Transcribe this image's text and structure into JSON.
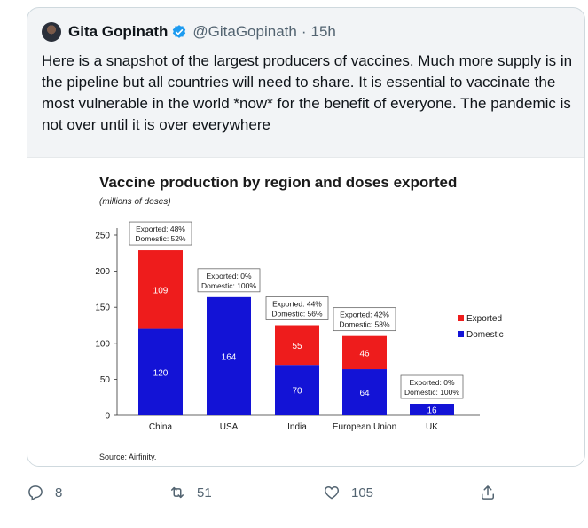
{
  "tweet": {
    "author_name": "Gita Gopinath",
    "author_handle": "@GitaGopinath",
    "separator": "·",
    "time": "15h",
    "text": "Here is a snapshot of the largest producers of vaccines. Much more supply is in the pipeline but all countries will need to share. It is essential to vaccinate the most vulnerable in the world *now* for the benefit of everyone. The pandemic is not over until it is over everywhere"
  },
  "actions": {
    "reply_count": "8",
    "retweet_count": "51",
    "like_count": "105"
  },
  "icons": {
    "verified": "verified-badge-icon",
    "reply": "reply-icon",
    "retweet": "retweet-icon",
    "like": "heart-icon",
    "share": "share-icon"
  },
  "colors": {
    "exported": "#ee1c1c",
    "domestic": "#1313d6",
    "link_blue": "#1d9bf0"
  },
  "chart_data": {
    "type": "bar",
    "title": "Vaccine production by region and doses exported",
    "subtitle": "(millions of doses)",
    "source": "Source: Airfinity.",
    "categories": [
      "China",
      "USA",
      "India",
      "European Union",
      "UK"
    ],
    "series": [
      {
        "name": "Domestic",
        "values": [
          120,
          164,
          70,
          64,
          16
        ]
      },
      {
        "name": "Exported",
        "values": [
          109,
          0,
          55,
          46,
          0
        ]
      }
    ],
    "stacked": true,
    "annotations": [
      {
        "exported": "Exported: 48%",
        "domestic": "Domestic: 52%"
      },
      {
        "exported": "Exported: 0%",
        "domestic": "Domestic: 100%"
      },
      {
        "exported": "Exported: 44%",
        "domestic": "Domestic: 56%"
      },
      {
        "exported": "Exported: 42%",
        "domestic": "Domestic: 58%"
      },
      {
        "exported": "Exported: 0%",
        "domestic": "Domestic: 100%"
      }
    ],
    "yticks": [
      "0",
      "50",
      "100",
      "150",
      "200",
      "250"
    ],
    "ylim": [
      0,
      250
    ],
    "legend": [
      "Exported",
      "Domestic"
    ],
    "legend_position": "right",
    "grid": false
  }
}
